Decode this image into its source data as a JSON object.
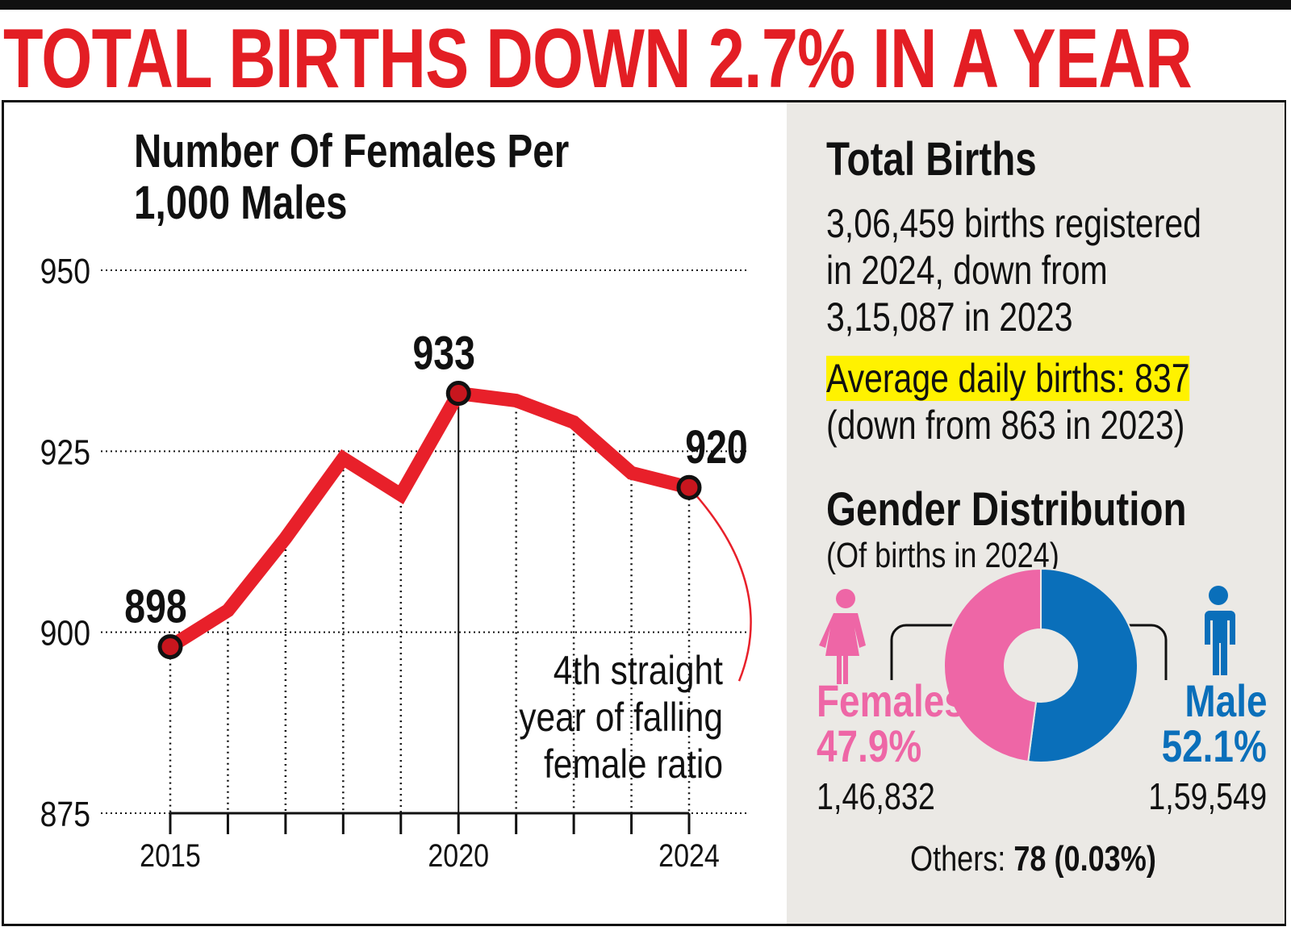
{
  "headline": "TOTAL BIRTHS DOWN 2.7% IN A YEAR",
  "chart_data": {
    "type": "line",
    "title": "Number Of Females Per 1,000 Males",
    "title_lines": [
      "Number Of Females Per",
      "1,000 Males"
    ],
    "x": [
      2015,
      2016,
      2017,
      2018,
      2019,
      2020,
      2021,
      2022,
      2023,
      2024
    ],
    "values": [
      898,
      903,
      913,
      924,
      919,
      933,
      932,
      929,
      922,
      920
    ],
    "xtick_labels": [
      "2015",
      "2020",
      "2024"
    ],
    "ytick_labels": [
      "950",
      "925",
      "900",
      "875"
    ],
    "yticks": [
      950,
      925,
      900,
      875
    ],
    "ylim": [
      875,
      950
    ],
    "data_labels": [
      {
        "x": 2015,
        "label": "898"
      },
      {
        "x": 2020,
        "label": "933"
      },
      {
        "x": 2024,
        "label": "920"
      }
    ],
    "annotation": [
      "4th straight",
      "year of falling",
      "female ratio"
    ],
    "grid": true,
    "color": "#e8202a"
  },
  "total_births": {
    "heading": "Total Births",
    "lines": [
      "3,06,459 births registered",
      "in 2024, down from",
      "3,15,087 in 2023"
    ],
    "highlight": "Average daily births: 837",
    "sub": "(down from 863 in 2023)"
  },
  "gender": {
    "heading": "Gender Distribution",
    "sub": "(Of births in 2024)",
    "female": {
      "label": "Females",
      "pct": "47.9%",
      "count": "1,46,832",
      "value": 47.9,
      "color": "#ee66a6"
    },
    "male": {
      "label": "Male",
      "pct": "52.1%",
      "count": "1,59,549",
      "value": 52.1,
      "color": "#0a6fba"
    },
    "others_label": "Others:",
    "others_value": "78 (0.03%)"
  }
}
